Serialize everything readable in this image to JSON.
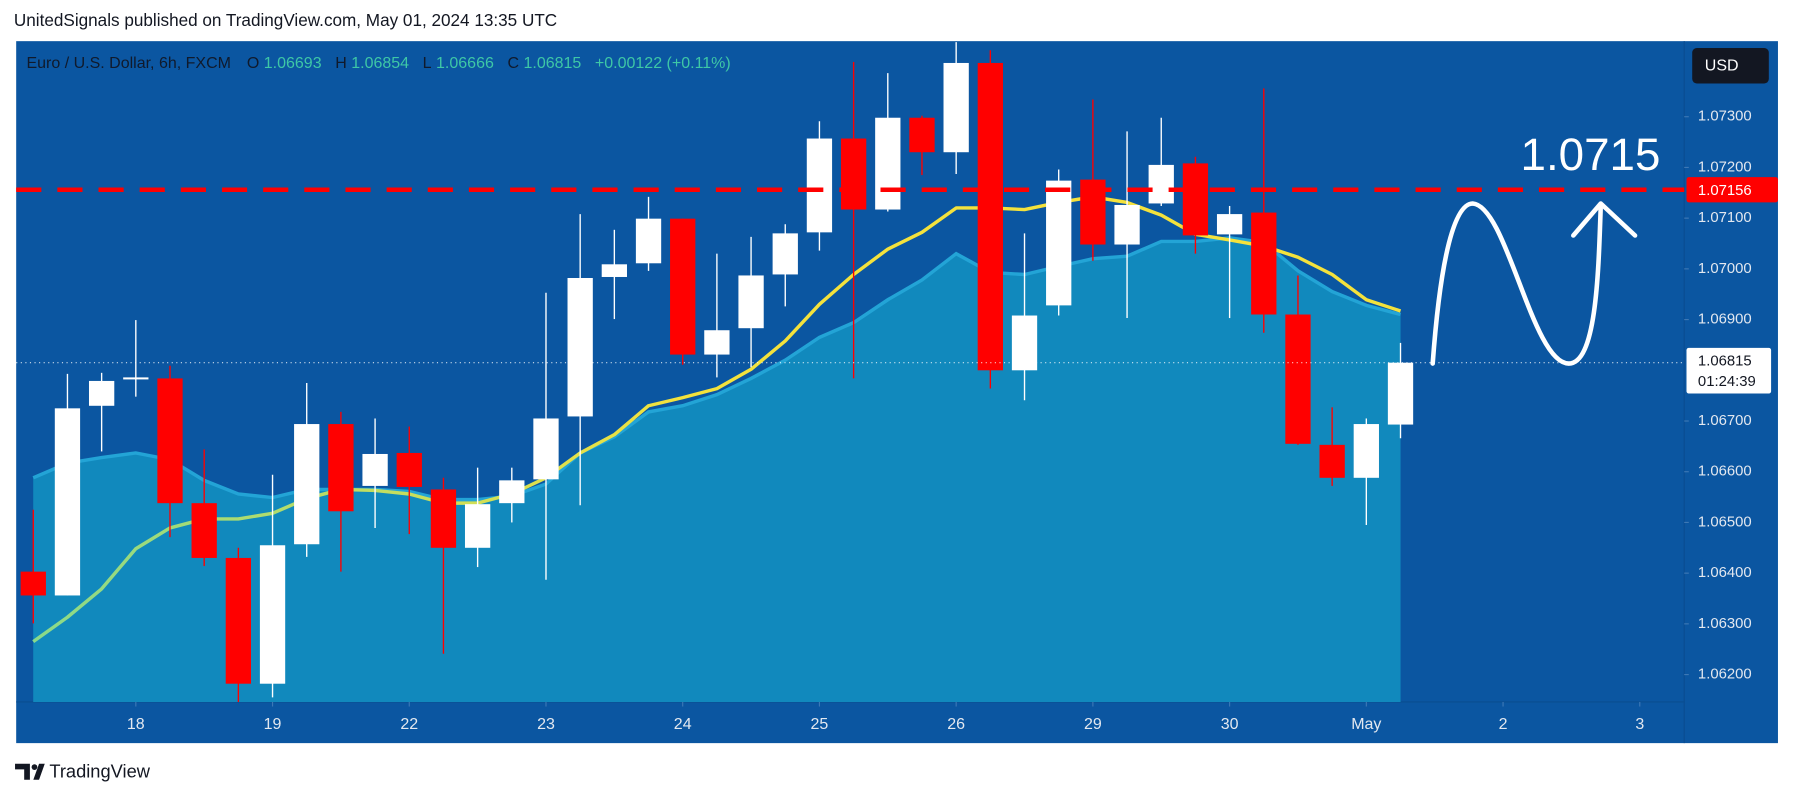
{
  "header": {
    "title": "UnitedSignals published on TradingView.com, May 01, 2024 13:35 UTC"
  },
  "chart_data": {
    "type": "candlestick",
    "title": "Euro / U.S. Dollar, 6h, FXCM",
    "ohlc_letters": {
      "open": "O",
      "high": "H",
      "low": "L",
      "close": "C"
    },
    "change": "+0.00122 (+0.11%)",
    "currency": "USD",
    "countdown": "01:24:39",
    "annotation": "1.0715",
    "up_color": "#ffffff",
    "down_color": "#ff0000",
    "open": [
      1.06403,
      1.06356,
      1.0673,
      1.06782,
      1.06784,
      1.06538,
      1.0643,
      1.06182,
      1.06457,
      1.06694,
      1.06572,
      1.06637,
      1.06565,
      1.0645,
      1.06538,
      1.06585,
      1.06709,
      1.06984,
      1.07011,
      1.07099,
      1.06831,
      1.06883,
      1.06989,
      1.07072,
      1.07257,
      1.07117,
      1.07298,
      1.0723,
      1.07406,
      1.068,
      1.06928,
      1.07176,
      1.07048,
      1.07129,
      1.07208,
      1.07068,
      1.07111,
      1.0691,
      1.06653,
      1.06588,
      1.06693
    ],
    "high": [
      1.06525,
      1.06793,
      1.06795,
      1.06899,
      1.06809,
      1.06644,
      1.0645,
      1.06594,
      1.06775,
      1.06718,
      1.06705,
      1.06689,
      1.06588,
      1.06608,
      1.06608,
      1.06953,
      1.07108,
      1.07077,
      1.07142,
      1.07099,
      1.0703,
      1.07063,
      1.07088,
      1.07291,
      1.07408,
      1.07386,
      1.07302,
      1.07447,
      1.07431,
      1.0707,
      1.07196,
      1.07334,
      1.07271,
      1.07298,
      1.07221,
      1.07124,
      1.07356,
      1.06987,
      1.06727,
      1.06705,
      1.06854
    ],
    "low": [
      1.06301,
      1.06356,
      1.0664,
      1.06748,
      1.06471,
      1.06414,
      1.06146,
      1.06155,
      1.06432,
      1.06403,
      1.06489,
      1.06477,
      1.06241,
      1.06412,
      1.065,
      1.06387,
      1.06534,
      1.06901,
      1.06996,
      1.06811,
      1.06786,
      1.06806,
      1.06926,
      1.07036,
      1.06784,
      1.07113,
      1.07185,
      1.07187,
      1.06764,
      1.06741,
      1.06908,
      1.07016,
      1.06903,
      1.07124,
      1.0703,
      1.06903,
      1.06874,
      1.06653,
      1.06572,
      1.06495,
      1.06666
    ],
    "close": [
      1.06356,
      1.06725,
      1.06779,
      1.06786,
      1.06538,
      1.0643,
      1.06182,
      1.06455,
      1.06694,
      1.06522,
      1.06635,
      1.0657,
      1.0645,
      1.06536,
      1.06583,
      1.06705,
      1.06982,
      1.07009,
      1.07099,
      1.06831,
      1.06879,
      1.06987,
      1.0707,
      1.07257,
      1.07117,
      1.07298,
      1.0723,
      1.07406,
      1.068,
      1.06908,
      1.07174,
      1.07048,
      1.07126,
      1.07205,
      1.07066,
      1.07108,
      1.0691,
      1.06655,
      1.06588,
      1.06694,
      1.06815
    ],
    "line": {
      "colors": [
        "#86d98c",
        "#f4e23c"
      ],
      "values": [
        1.06265,
        1.06313,
        1.06369,
        1.06448,
        1.06489,
        1.06507,
        1.06507,
        1.06518,
        1.06547,
        1.06565,
        1.06563,
        1.06556,
        1.06538,
        1.06538,
        1.06556,
        1.06588,
        1.06637,
        1.06673,
        1.0673,
        1.06746,
        1.06764,
        1.06802,
        1.06858,
        1.0693,
        1.06989,
        1.07039,
        1.07072,
        1.0712,
        1.0712,
        1.07117,
        1.07131,
        1.07142,
        1.07131,
        1.07106,
        1.07068,
        1.07057,
        1.07045,
        1.07023,
        1.06989,
        1.06939,
        1.06917
      ]
    },
    "area": {
      "color": "#1189bd",
      "line_color": "#23a4d6",
      "values": [
        1.06588,
        1.06617,
        1.06628,
        1.06637,
        1.06624,
        1.06583,
        1.06556,
        1.06549,
        1.06565,
        1.06565,
        1.06565,
        1.06561,
        1.06545,
        1.06545,
        1.06552,
        1.06576,
        1.06637,
        1.06669,
        1.06718,
        1.0673,
        1.06752,
        1.06784,
        1.0682,
        1.06865,
        1.06894,
        1.06939,
        1.06978,
        1.0703,
        1.06993,
        1.06989,
        1.07005,
        1.0702,
        1.07025,
        1.07054,
        1.07054,
        1.07061,
        1.07052,
        1.06996,
        1.06955,
        1.06928,
        1.0691
      ]
    },
    "hline": 1.07156,
    "hline_color": "#ff0000",
    "xlim": [
      -0.5,
      48.3
    ],
    "xticks": [
      {
        "value": 3,
        "label": "18"
      },
      {
        "value": 7,
        "label": "19"
      },
      {
        "value": 11,
        "label": "22"
      },
      {
        "value": 15,
        "label": "23"
      },
      {
        "value": 19,
        "label": "24"
      },
      {
        "value": 23,
        "label": "25"
      },
      {
        "value": 27,
        "label": "26"
      },
      {
        "value": 31,
        "label": "29"
      },
      {
        "value": 35,
        "label": "30"
      },
      {
        "value": 39,
        "label": "May"
      },
      {
        "value": 43,
        "label": "2"
      },
      {
        "value": 47,
        "label": "3"
      }
    ],
    "ylim": [
      1.06146,
      1.07449
    ],
    "yticks": [
      {
        "value": 1.073,
        "label": "1.07300"
      },
      {
        "value": 1.072,
        "label": "1.07200"
      },
      {
        "value": 1.071,
        "label": "1.07100"
      },
      {
        "value": 1.07,
        "label": "1.07000"
      },
      {
        "value": 1.069,
        "label": "1.06900"
      },
      {
        "value": 1.067,
        "label": "1.06700"
      },
      {
        "value": 1.066,
        "label": "1.06600"
      },
      {
        "value": 1.065,
        "label": "1.06500"
      },
      {
        "value": 1.064,
        "label": "1.06400"
      },
      {
        "value": 1.063,
        "label": "1.06300"
      },
      {
        "value": 1.062,
        "label": "1.06200"
      }
    ]
  },
  "footer": {
    "brand": "TradingView"
  }
}
